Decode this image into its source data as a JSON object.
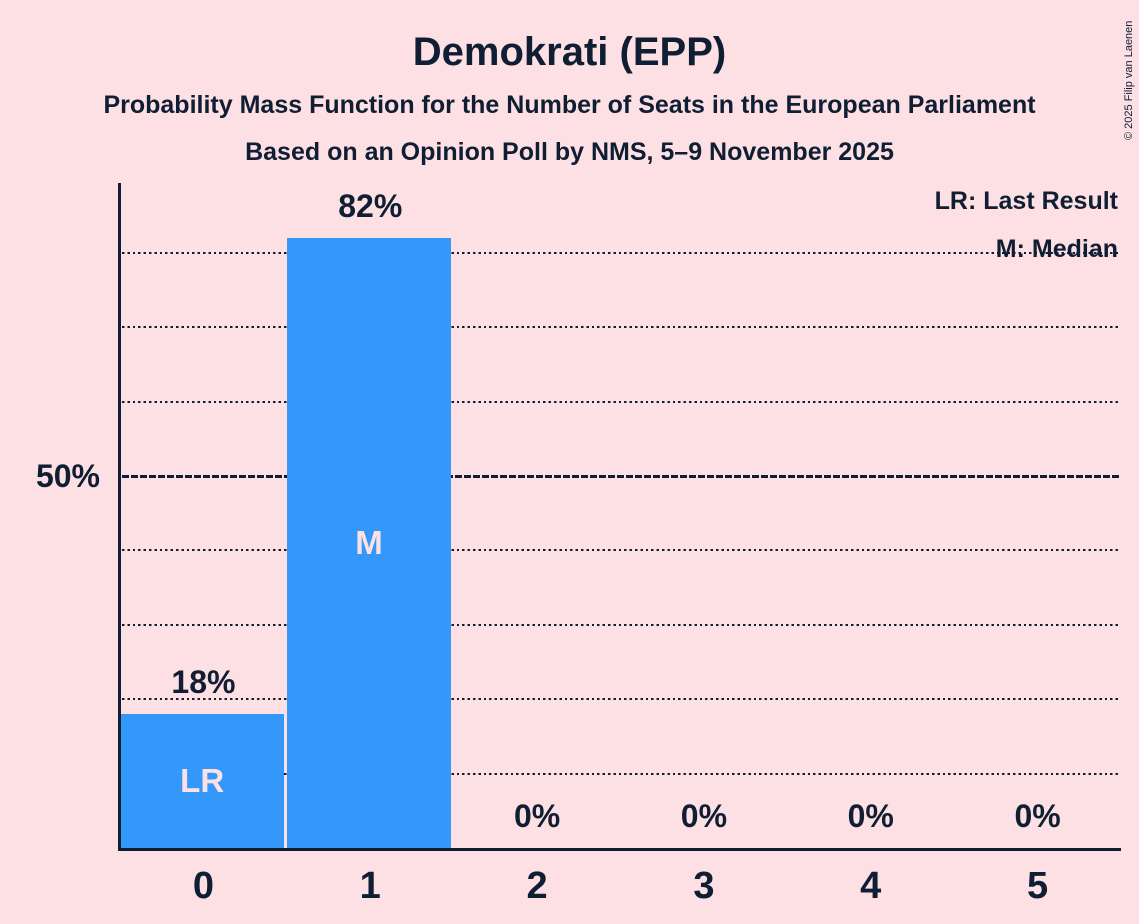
{
  "header": {
    "title": "Demokrati (EPP)",
    "subtitle1": "Probability Mass Function for the Number of Seats in the European Parliament",
    "subtitle2": "Based on an Opinion Poll by NMS, 5–9 November 2025",
    "copyright": "© 2025 Filip van Laenen"
  },
  "legend": {
    "lr": "LR: Last Result",
    "m": "M: Median"
  },
  "axes": {
    "y_label": "50%"
  },
  "colors": {
    "background": "#FDE0E3",
    "bar": "#3498FA",
    "ink": "#0F1E33",
    "bar_annotation": "#FDE0E3"
  },
  "chart_data": {
    "type": "bar",
    "title": "Demokrati (EPP)",
    "subtitle": "Probability Mass Function for the Number of Seats in the European Parliament — Based on an Opinion Poll by NMS, 5–9 November 2025",
    "categories": [
      "0",
      "1",
      "2",
      "3",
      "4",
      "5"
    ],
    "values": [
      18,
      82,
      0,
      0,
      0,
      0
    ],
    "value_labels": [
      "18%",
      "82%",
      "0%",
      "0%",
      "0%",
      "0%"
    ],
    "bar_annotations": [
      "LR",
      "M",
      "",
      "",
      "",
      ""
    ],
    "xlabel": "",
    "ylabel": "",
    "ylim": [
      0,
      89
    ],
    "y_axis_labels": [
      {
        "value": 50,
        "label": "50%"
      }
    ],
    "gridlines": {
      "dotted": [
        10,
        20,
        30,
        40,
        60,
        70,
        80
      ],
      "solid": [
        50
      ]
    },
    "grid": true,
    "legend_position": "top-right",
    "legend_entries": [
      "LR: Last Result",
      "M: Median"
    ]
  }
}
